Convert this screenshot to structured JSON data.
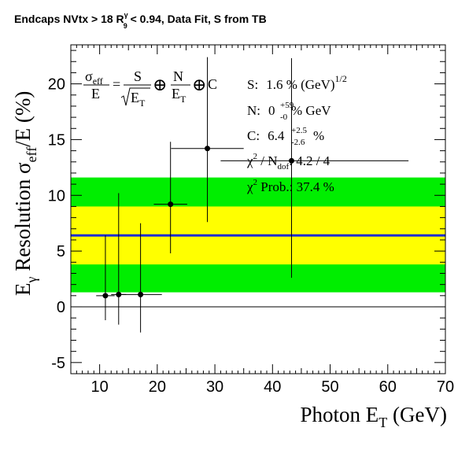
{
  "chart_data": {
    "type": "scatter",
    "title": "Endcaps NVtx > 18 R",
    "title_sup": "γ",
    "title_sub": "9",
    "title_rest": " < 0.94, Data Fit, S from TB",
    "xlabel": "Photon E",
    "xlabel_sub": "T",
    "xlabel_unit": " (GeV)",
    "ylabel_E": "E",
    "ylabel_gamma": "γ",
    "ylabel_mid": " Resolution σ",
    "ylabel_eff": "eff",
    "ylabel_end": "/E (%)",
    "xlim": [
      5,
      70
    ],
    "ylim": [
      -6,
      23.5
    ],
    "x_ticks": [
      10,
      20,
      30,
      40,
      50,
      60,
      70
    ],
    "y_ticks": [
      -5,
      0,
      5,
      10,
      15,
      20
    ],
    "grid": false,
    "zero_line": true,
    "fit": {
      "value": 6.4,
      "band_1sigma": [
        3.8,
        9.0
      ],
      "band_2sigma": [
        1.3,
        11.6
      ],
      "colors": {
        "line": "#1f2fd0",
        "band_1sigma": "#ffff00",
        "band_2sigma": "#00ee00"
      }
    },
    "points": [
      {
        "x": 11.0,
        "y": 1.0,
        "xerr": [
          1.6,
          1.6
        ],
        "yerr": [
          2.2,
          5.4
        ]
      },
      {
        "x": 13.3,
        "y": 1.1,
        "xerr": [
          1.3,
          1.3
        ],
        "yerr": [
          2.7,
          9.1
        ]
      },
      {
        "x": 17.1,
        "y": 1.1,
        "xerr": [
          3.7,
          3.7
        ],
        "yerr": [
          3.4,
          6.4
        ]
      },
      {
        "x": 22.3,
        "y": 9.2,
        "xerr": [
          2.9,
          2.9
        ],
        "yerr": [
          4.4,
          5.6
        ]
      },
      {
        "x": 28.7,
        "y": 14.2,
        "xerr": [
          6.3,
          6.3
        ],
        "yerr": [
          6.6,
          8.2
        ]
      },
      {
        "x": 43.3,
        "y": 13.1,
        "xerr": [
          12.3,
          20.3
        ],
        "yerr": [
          10.5,
          9.2
        ]
      }
    ],
    "formula": {
      "sigma": "σ",
      "eff": "eff",
      "E": "E",
      "S": "S",
      "N": "N",
      "C": "C",
      "ET": "E",
      "T": "T",
      "oplus": "⊕",
      "eq": "="
    },
    "stats": {
      "S_label": "S:",
      "S_value": "1.6 % (GeV)",
      "S_exp": "1/2",
      "N_label": "N:",
      "N_value": "0",
      "N_up": "+59",
      "N_down": "-0",
      "N_unit": " % GeV",
      "C_label": "C:",
      "C_value": "6.4",
      "C_up": "+2.5",
      "C_down": "-2.6",
      "C_unit": " %",
      "chi2_label": "χ",
      "chi2_exp": "2",
      "chi2_mid": " / N",
      "chi2_sub": "dof",
      "chi2_value": ": 4.2 / 4",
      "prob_label": "χ",
      "prob_exp": "2",
      "prob_value": " Prob.: 37.4 %"
    }
  }
}
